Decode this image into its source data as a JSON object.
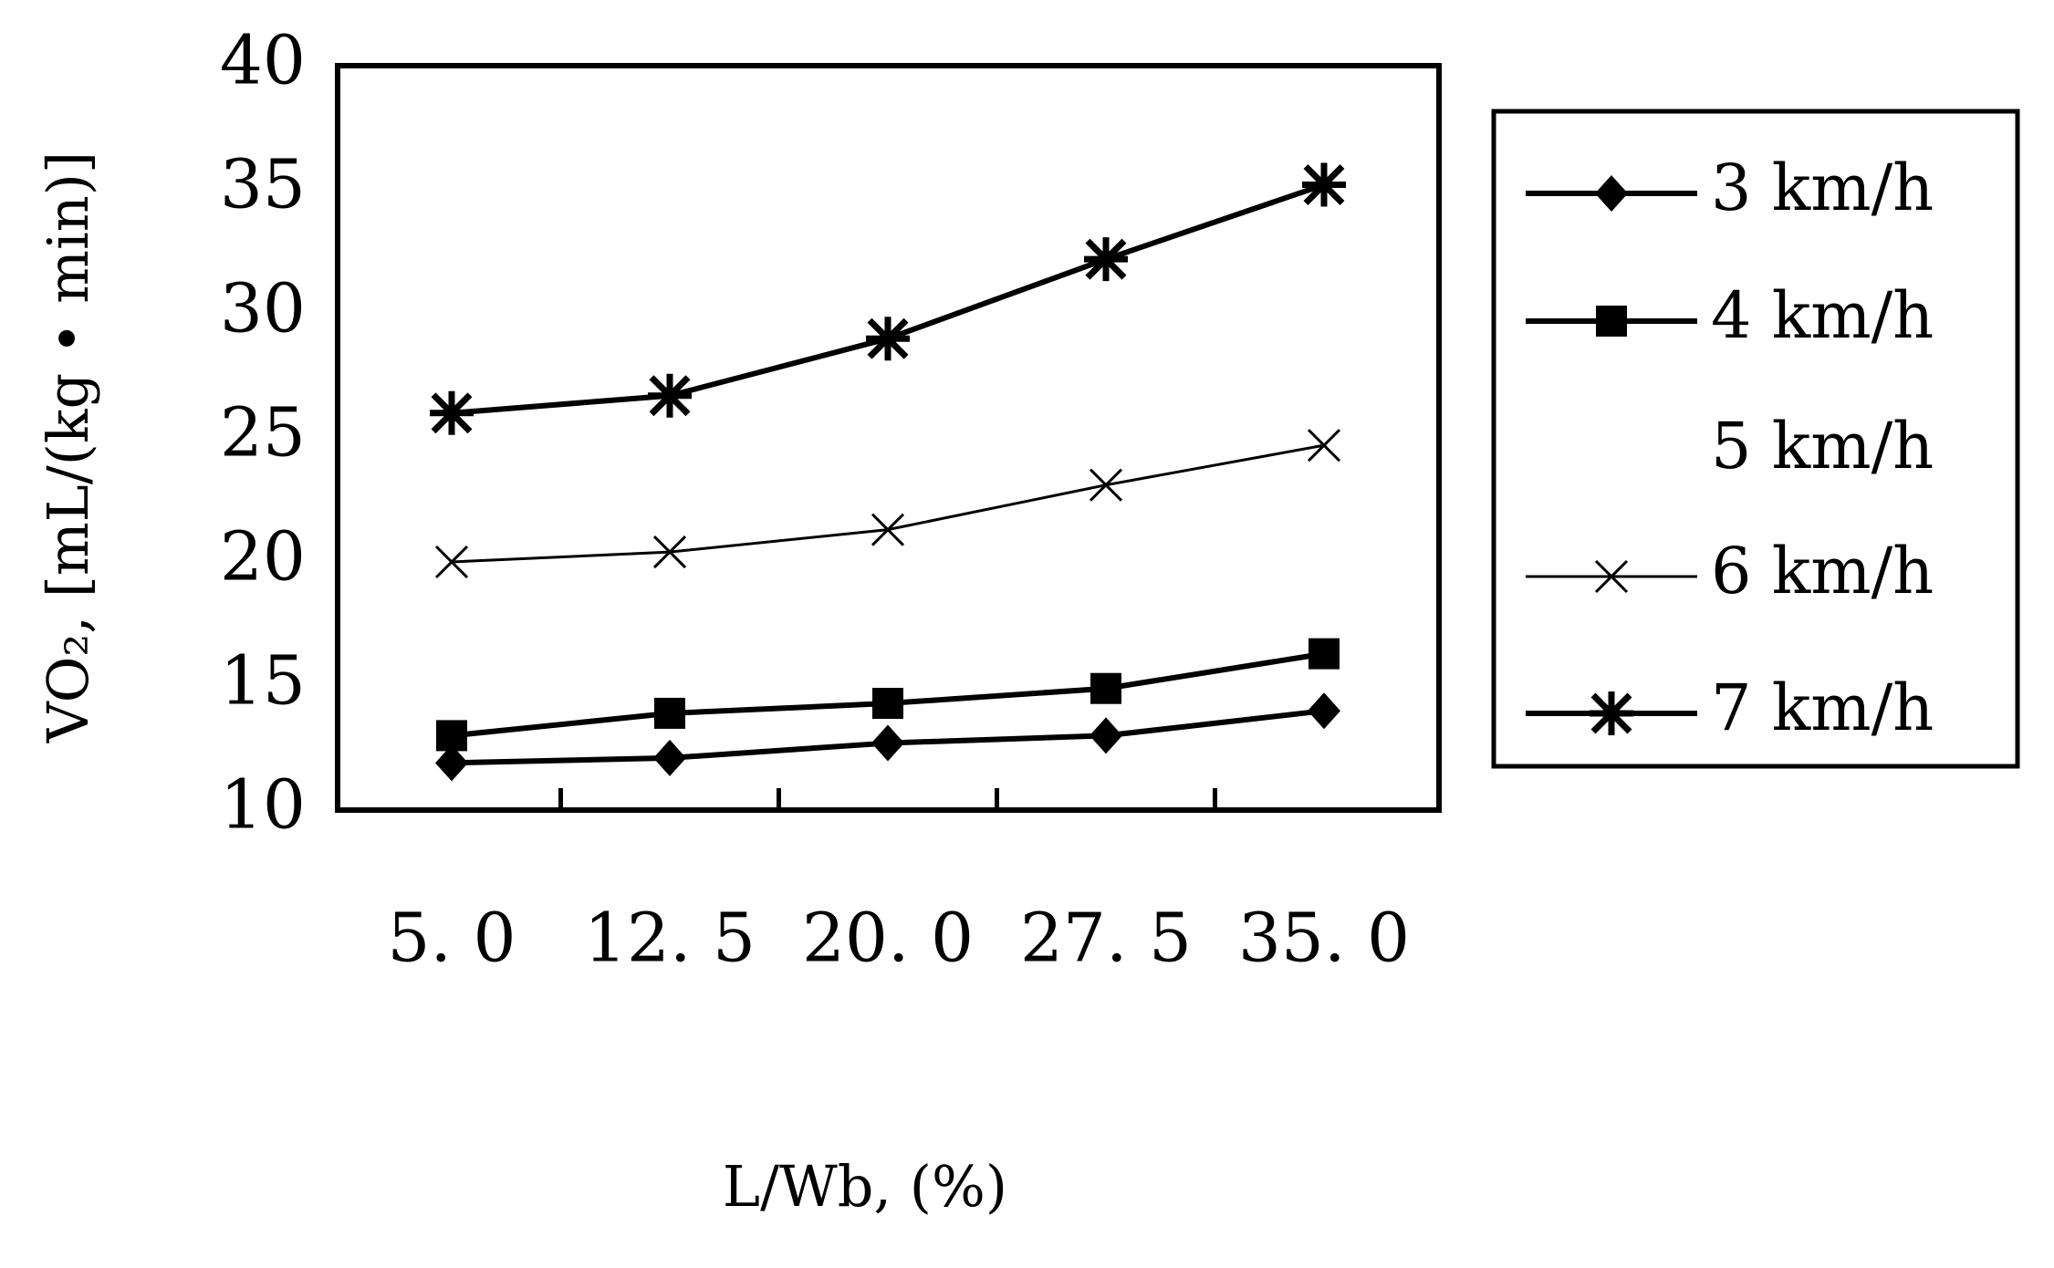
{
  "chart_data": {
    "type": "line",
    "y_label": "VO₂,  [mL/(kg • min)]",
    "x_label": "L/Wb,  (%)",
    "categories": [
      "5. 0",
      "12. 5",
      "20. 0",
      "27. 5",
      "35. 0"
    ],
    "series": [
      {
        "name": "3 km/h",
        "color": "#000000",
        "marker": "diamond",
        "values": [
          11.9,
          12.1,
          12.7,
          13.0,
          14.0
        ]
      },
      {
        "name": "4 km/h",
        "color": "#000000",
        "marker": "square",
        "values": [
          13.0,
          13.9,
          14.3,
          14.9,
          16.3
        ]
      },
      {
        "name": "5 km/h",
        "color": "#000000",
        "marker": "none",
        "values": [
          null,
          null,
          null,
          null,
          null
        ]
      },
      {
        "name": "6 km/h",
        "color": "#000000",
        "marker": "x",
        "values": [
          20.0,
          20.4,
          21.3,
          23.1,
          24.7
        ]
      },
      {
        "name": "7 km/h",
        "color": "#000000",
        "marker": "star",
        "values": [
          26.0,
          26.7,
          29.0,
          32.2,
          35.2
        ]
      }
    ],
    "ylim": [
      10,
      40
    ],
    "yticks": [
      10,
      15,
      20,
      25,
      30,
      35,
      40
    ],
    "grid": false,
    "legend": "right"
  }
}
